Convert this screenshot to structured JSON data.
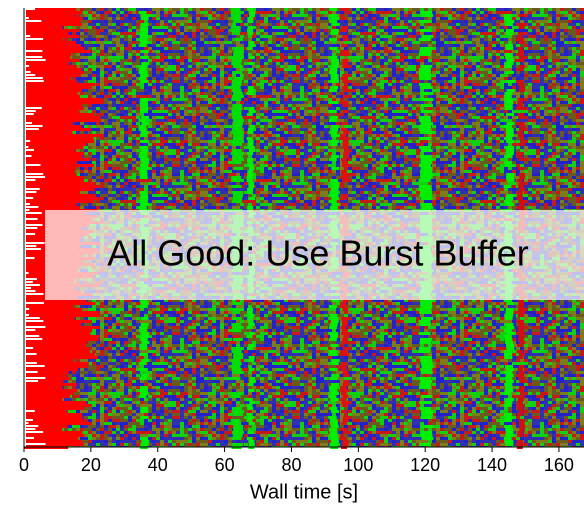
{
  "chart_data": {
    "type": "heatmap",
    "xlabel": "Wall time [s]",
    "xlim": [
      0,
      167.5
    ],
    "xticks": [
      0,
      20,
      40,
      60,
      80,
      100,
      120,
      140,
      160
    ],
    "annotation": "All Good: Use Burst Buffer"
  }
}
